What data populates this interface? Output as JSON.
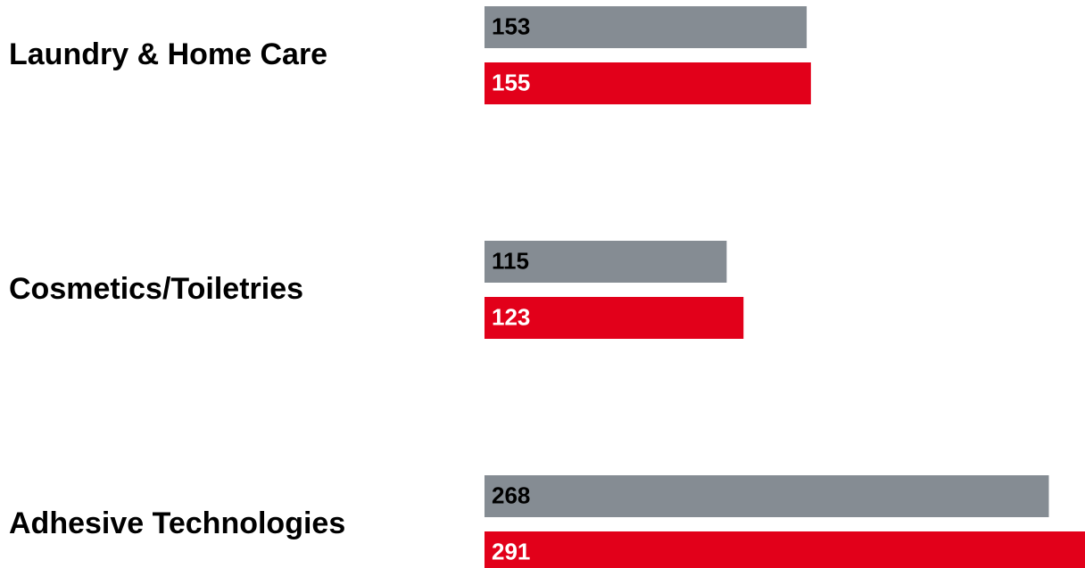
{
  "chart_data": {
    "type": "bar",
    "orientation": "horizontal",
    "categories": [
      "Laundry & Home Care",
      "Cosmetics/Toiletries",
      "Adhesive Technologies"
    ],
    "series": [
      {
        "color": "#858c93",
        "label_color": "#000000",
        "values": [
          153,
          115,
          268
        ]
      },
      {
        "color": "#e2001a",
        "label_color": "#ffffff",
        "values": [
          155,
          123,
          291
        ]
      }
    ]
  }
}
